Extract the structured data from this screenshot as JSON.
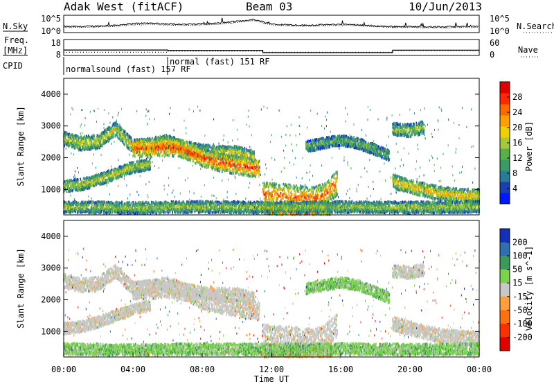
{
  "header": {
    "radar": "Adak West (fitACF)",
    "beam": "Beam 03",
    "date": "10/Jun/2013"
  },
  "chart_data": [
    {
      "type": "line",
      "panel": "noise",
      "left_label": "N.Sky",
      "right_label": "N.Search",
      "left_ticks": [
        "10^5",
        "10^0"
      ],
      "right_ticks": [
        "10^5",
        "10^0"
      ],
      "series": [
        {
          "name": "N.Sky",
          "style": "solid"
        },
        {
          "name": "N.Search",
          "style": "dotted"
        }
      ],
      "x": [
        0,
        1,
        2,
        3,
        4,
        5,
        6,
        7,
        8,
        9,
        10,
        11,
        12,
        13,
        14,
        15,
        16,
        17,
        18,
        19,
        20,
        21,
        22,
        23,
        24
      ],
      "sky_level": [
        0.35,
        0.35,
        0.38,
        0.42,
        0.52,
        0.55,
        0.5,
        0.48,
        0.5,
        0.55,
        0.65,
        0.75,
        0.5,
        0.45,
        0.42,
        0.45,
        0.48,
        0.45,
        0.38,
        0.35,
        0.35,
        0.33,
        0.33,
        0.35,
        0.35
      ],
      "search_level": [
        0.3,
        0.3,
        0.32,
        0.36,
        0.45,
        0.47,
        0.44,
        0.42,
        0.44,
        0.48,
        0.58,
        0.68,
        0.44,
        0.4,
        0.36,
        0.4,
        0.42,
        0.4,
        0.33,
        0.3,
        0.3,
        0.28,
        0.28,
        0.3,
        0.3
      ]
    },
    {
      "type": "line",
      "panel": "frequency",
      "left_label": [
        "Freq.",
        "[MHz]"
      ],
      "right_label": "Nave",
      "left_ticks": [
        "18",
        "8"
      ],
      "right_ticks": [
        "60",
        "0"
      ],
      "freq_segments": [
        [
          0,
          6,
          11.4
        ],
        [
          6,
          11.5,
          11.2
        ],
        [
          11.5,
          19,
          9.8
        ],
        [
          19,
          24,
          11.3
        ]
      ],
      "nave_segments": [
        [
          0,
          6,
          12
        ],
        [
          6,
          11.5,
          16
        ],
        [
          11.5,
          19,
          12
        ],
        [
          19,
          24,
          18
        ]
      ]
    },
    {
      "type": "table",
      "panel": "cpid",
      "label": "CPID",
      "entries": [
        {
          "text": "normalsound (fast) 157 RF",
          "start": 0
        },
        {
          "text": "normal (fast) 151 RF",
          "start": 6
        }
      ]
    },
    {
      "type": "heatmap",
      "panel": "power",
      "ylabel": "Slant Range [km]",
      "yticks": [
        "1000",
        "2000",
        "3000",
        "4000"
      ],
      "ylim": [
        200,
        4500
      ],
      "colorbar_label": "Power [dB]",
      "colorbar_ticks": [
        "4",
        "8",
        "12",
        "16",
        "20",
        "24",
        "28"
      ],
      "colorbar_colors": [
        "#0018ff",
        "#1a3fb5",
        "#2a7b9a",
        "#3c9a64",
        "#58b04a",
        "#a6c83a",
        "#f0d000",
        "#ffa000",
        "#ff6a00",
        "#ff2800",
        "#e00000"
      ],
      "bands": [
        {
          "x": [
            0,
            1,
            2,
            3,
            4,
            5,
            6,
            7,
            8,
            9,
            10,
            11
          ],
          "r": [
            2600,
            2450,
            2500,
            2900,
            2350,
            2400,
            2500,
            2300,
            2200,
            2150,
            2150,
            2000
          ],
          "w": 220,
          "level": 0.55
        },
        {
          "x": [
            0,
            1,
            2,
            3,
            4,
            5
          ],
          "r": [
            1100,
            1150,
            1300,
            1500,
            1700,
            1800
          ],
          "w": 180,
          "level": 0.55
        },
        {
          "x": [
            4,
            5,
            6,
            7,
            8,
            9,
            10,
            11.3
          ],
          "r": [
            2300,
            2300,
            2350,
            2250,
            2000,
            1850,
            1750,
            1650
          ],
          "w": 280,
          "level": 0.85
        },
        {
          "x": [
            11.5,
            12.5,
            13.5,
            14.5,
            15,
            15.8
          ],
          "r": [
            850,
            800,
            750,
            700,
            800,
            1200
          ],
          "w": 380,
          "level": 0.8
        },
        {
          "x": [
            11.6,
            12.8,
            14,
            15.5
          ],
          "r": [
            400,
            350,
            300,
            400
          ],
          "w": 200,
          "level": 0.9
        },
        {
          "x": [
            14,
            15,
            16,
            17,
            18,
            18.8
          ],
          "r": [
            2350,
            2450,
            2550,
            2450,
            2250,
            2050
          ],
          "w": 170,
          "level": 0.4
        },
        {
          "x": [
            19,
            20,
            20.8
          ],
          "r": [
            2900,
            2850,
            2950
          ],
          "w": 200,
          "level": 0.5
        },
        {
          "x": [
            19,
            20,
            21,
            22,
            23,
            24
          ],
          "r": [
            1250,
            1100,
            950,
            850,
            800,
            800
          ],
          "w": 220,
          "level": 0.65
        },
        {
          "x": [
            0,
            4,
            8,
            12,
            16,
            20,
            24
          ],
          "r": [
            450,
            420,
            450,
            430,
            450,
            430,
            450
          ],
          "w": 180,
          "level": 0.5
        }
      ]
    },
    {
      "type": "heatmap",
      "panel": "velocity",
      "ylabel": "Slant Range [km]",
      "yticks": [
        "1000",
        "2000",
        "3000",
        "4000"
      ],
      "ylim": [
        200,
        4500
      ],
      "xlabel": "Time UT",
      "xticks": [
        "00:00",
        "04:00",
        "08:00",
        "12:00",
        "16:00",
        "20:00",
        "00:00"
      ],
      "xlim": [
        0,
        24
      ],
      "colorbar_label": "Velocity [m s^-1]",
      "colorbar_ticks": [
        "200",
        "100",
        "50",
        "15",
        "-15",
        "-50",
        "-100",
        "-200"
      ],
      "colorbar_colors": [
        "#1530b8",
        "#2f6fb0",
        "#3b9a5a",
        "#7cd24a",
        "#c8c8c8",
        "#ffa040",
        "#ff7010",
        "#ff3000",
        "#e00000"
      ],
      "bands": [
        {
          "x": [
            0,
            1,
            2,
            3,
            4,
            5,
            6,
            7,
            8,
            9,
            10,
            11
          ],
          "r": [
            2600,
            2450,
            2500,
            2900,
            2350,
            2400,
            2500,
            2300,
            2200,
            2150,
            2150,
            2000
          ],
          "w": 220,
          "kind": "gray"
        },
        {
          "x": [
            0,
            1,
            2,
            3,
            4,
            5
          ],
          "r": [
            1100,
            1150,
            1300,
            1500,
            1700,
            1800
          ],
          "w": 180,
          "kind": "gray"
        },
        {
          "x": [
            4,
            5,
            6,
            7,
            8,
            9,
            10,
            11.3
          ],
          "r": [
            2300,
            2300,
            2350,
            2250,
            2000,
            1850,
            1750,
            1650
          ],
          "w": 280,
          "kind": "gray"
        },
        {
          "x": [
            11.5,
            12.5,
            13.5,
            14.5,
            15,
            15.8
          ],
          "r": [
            850,
            800,
            750,
            700,
            800,
            1200
          ],
          "w": 380,
          "kind": "gray"
        },
        {
          "x": [
            11.6,
            12.8,
            14,
            15.5
          ],
          "r": [
            400,
            350,
            300,
            400
          ],
          "w": 200,
          "kind": "orange"
        },
        {
          "x": [
            14,
            15,
            16,
            17,
            18,
            18.8
          ],
          "r": [
            2350,
            2450,
            2550,
            2450,
            2250,
            2050
          ],
          "w": 170,
          "kind": "green"
        },
        {
          "x": [
            19,
            20,
            20.8
          ],
          "r": [
            2900,
            2850,
            2950
          ],
          "w": 200,
          "kind": "gray"
        },
        {
          "x": [
            19,
            20,
            21,
            22,
            23,
            24
          ],
          "r": [
            1250,
            1100,
            950,
            850,
            800,
            800
          ],
          "w": 220,
          "kind": "gray"
        },
        {
          "x": [
            0,
            4,
            8,
            12,
            16,
            20,
            24
          ],
          "r": [
            450,
            420,
            450,
            430,
            450,
            430,
            450
          ],
          "w": 180,
          "kind": "green"
        }
      ]
    }
  ]
}
